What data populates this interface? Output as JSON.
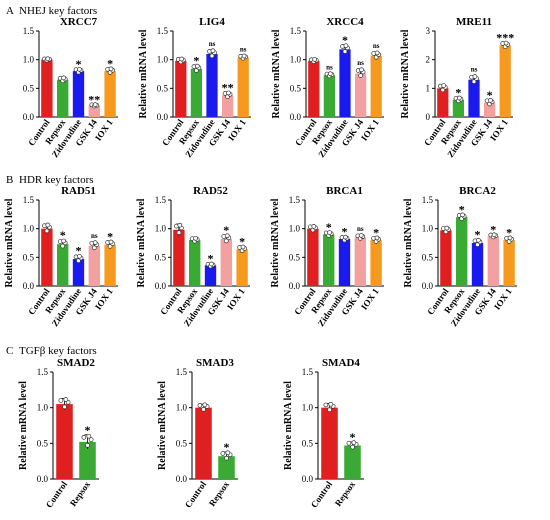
{
  "sections": [
    {
      "letter": "A",
      "title": "NHEJ key factors"
    },
    {
      "letter": "B",
      "title": "HDR key factors"
    },
    {
      "letter": "C",
      "title": "TGFβ key factors"
    }
  ],
  "colors": {
    "Control": "#e02020",
    "Repsox": "#3aaa35",
    "Zidovudine": "#1a1aee",
    "GSK J4": "#f2a0a0",
    "IOX 1": "#f59a1e"
  },
  "chart_data": [
    {
      "type": "bar",
      "section": "A",
      "title": "XRCC7",
      "ylabel": "",
      "ylim": [
        0,
        1.5
      ],
      "yticks": [
        "0.0",
        "0.5",
        "1.0",
        "1.5"
      ],
      "categories": [
        "Control",
        "Repsox",
        "Zidovudine",
        "GSK J4",
        "IOX 1"
      ],
      "values": [
        1.0,
        0.65,
        0.8,
        0.2,
        0.8
      ],
      "errors": [
        0.02,
        0.04,
        0.04,
        0.02,
        0.05
      ],
      "significance": [
        "",
        "",
        "*",
        "**",
        "*"
      ]
    },
    {
      "type": "bar",
      "section": "A",
      "title": "LIG4",
      "ylabel": "Relative mRNA level",
      "ylim": [
        0,
        1.5
      ],
      "yticks": [
        "0.0",
        "0.5",
        "1.0",
        "1.5"
      ],
      "categories": [
        "Control",
        "Repsox",
        "Zidovudine",
        "GSK J4",
        "IOX 1"
      ],
      "values": [
        0.98,
        0.84,
        1.1,
        0.38,
        1.04
      ],
      "errors": [
        0.04,
        0.06,
        0.07,
        0.05,
        0.03
      ],
      "significance": [
        "",
        "*",
        "ns",
        "**",
        "ns"
      ]
    },
    {
      "type": "bar",
      "section": "A",
      "title": "XRCC4",
      "ylabel": "Relative mRNA level",
      "ylim": [
        0,
        1.5
      ],
      "yticks": [
        "0.0",
        "0.5",
        "1.0",
        "1.5"
      ],
      "categories": [
        "Control",
        "Repsox",
        "Zidovudine",
        "GSK J4",
        "IOX 1"
      ],
      "values": [
        0.98,
        0.73,
        1.18,
        0.76,
        1.07
      ],
      "errors": [
        0.03,
        0.03,
        0.08,
        0.08,
        0.06
      ],
      "significance": [
        "",
        "ns",
        "*",
        "ns",
        "ns"
      ]
    },
    {
      "type": "bar",
      "section": "A",
      "title": "MRE11",
      "ylabel": "Relative mRNA level",
      "ylim": [
        0,
        3
      ],
      "yticks": [
        "0",
        "1",
        "2",
        "3"
      ],
      "categories": [
        "Control",
        "Repsox",
        "Zidovudine",
        "GSK J4",
        "IOX 1"
      ],
      "values": [
        1.0,
        0.6,
        1.3,
        0.5,
        2.5
      ],
      "errors": [
        0.12,
        0.08,
        0.14,
        0.1,
        0.1
      ],
      "significance": [
        "",
        "*",
        "ns",
        "*",
        "***"
      ]
    },
    {
      "type": "bar",
      "section": "B",
      "title": "RAD51",
      "ylabel": "Relative mRNA level",
      "ylim": [
        0,
        1.5
      ],
      "yticks": [
        "0.0",
        "0.5",
        "1.0",
        "1.5"
      ],
      "categories": [
        "Control",
        "Repsox",
        "Zidovudine",
        "GSK J4",
        "IOX 1"
      ],
      "values": [
        1.0,
        0.73,
        0.47,
        0.7,
        0.72
      ],
      "errors": [
        0.08,
        0.07,
        0.06,
        0.07,
        0.06
      ],
      "significance": [
        "",
        "*",
        "*",
        "ns",
        "*"
      ]
    },
    {
      "type": "bar",
      "section": "B",
      "title": "RAD52",
      "ylabel": "Relative mRNA level",
      "ylim": [
        0,
        1.5
      ],
      "yticks": [
        "0.0",
        "0.5",
        "1.0",
        "1.5"
      ],
      "categories": [
        "Control",
        "Repsox",
        "Zidovudine",
        "GSK J4",
        "IOX 1"
      ],
      "values": [
        0.98,
        0.8,
        0.36,
        0.82,
        0.64
      ],
      "errors": [
        0.1,
        0.04,
        0.03,
        0.07,
        0.05
      ],
      "significance": [
        "",
        "",
        "*",
        "*",
        "*"
      ]
    },
    {
      "type": "bar",
      "section": "B",
      "title": "BRCA1",
      "ylabel": "Relative mRNA level",
      "ylim": [
        0,
        1.5
      ],
      "yticks": [
        "0.0",
        "0.5",
        "1.0",
        "1.5"
      ],
      "categories": [
        "Control",
        "Repsox",
        "Zidovudine",
        "GSK J4",
        "IOX 1"
      ],
      "values": [
        1.0,
        0.9,
        0.82,
        0.85,
        0.8
      ],
      "errors": [
        0.05,
        0.04,
        0.04,
        0.04,
        0.05
      ],
      "significance": [
        "",
        "*",
        "*",
        "ns",
        "*"
      ]
    },
    {
      "type": "bar",
      "section": "B",
      "title": "BRCA2",
      "ylabel": "Relative mRNA level",
      "ylim": [
        0,
        1.5
      ],
      "yticks": [
        "0.0",
        "0.5",
        "1.0",
        "1.5"
      ],
      "categories": [
        "Control",
        "Repsox",
        "Zidovudine",
        "GSK J4",
        "IOX 1"
      ],
      "values": [
        0.97,
        1.2,
        0.75,
        0.87,
        0.8
      ],
      "errors": [
        0.05,
        0.05,
        0.06,
        0.03,
        0.05
      ],
      "significance": [
        "",
        "*",
        "*",
        "*",
        "*"
      ]
    },
    {
      "type": "bar",
      "section": "C",
      "title": "SMAD2",
      "ylabel": "Relative mRNA level",
      "ylim": [
        0,
        1.5
      ],
      "yticks": [
        "0.0",
        "0.5",
        "1.0",
        "1.5"
      ],
      "categories": [
        "Control",
        "Repsox"
      ],
      "values": [
        1.05,
        0.52
      ],
      "errors": [
        0.08,
        0.1
      ],
      "significance": [
        "",
        "*"
      ]
    },
    {
      "type": "bar",
      "section": "C",
      "title": "SMAD3",
      "ylabel": "Relative mRNA level",
      "ylim": [
        0,
        1.5
      ],
      "yticks": [
        "0.0",
        "0.5",
        "1.0",
        "1.5"
      ],
      "categories": [
        "Control",
        "Repsox"
      ],
      "values": [
        1.0,
        0.32
      ],
      "errors": [
        0.05,
        0.06
      ],
      "significance": [
        "",
        "*"
      ]
    },
    {
      "type": "bar",
      "section": "C",
      "title": "SMAD4",
      "ylabel": "Relative mRNA level",
      "ylim": [
        0,
        1.5
      ],
      "yticks": [
        "0.0",
        "0.5",
        "1.0",
        "1.5"
      ],
      "categories": [
        "Control",
        "Repsox"
      ],
      "values": [
        1.0,
        0.47
      ],
      "errors": [
        0.06,
        0.05
      ],
      "significance": [
        "",
        "*"
      ]
    }
  ]
}
